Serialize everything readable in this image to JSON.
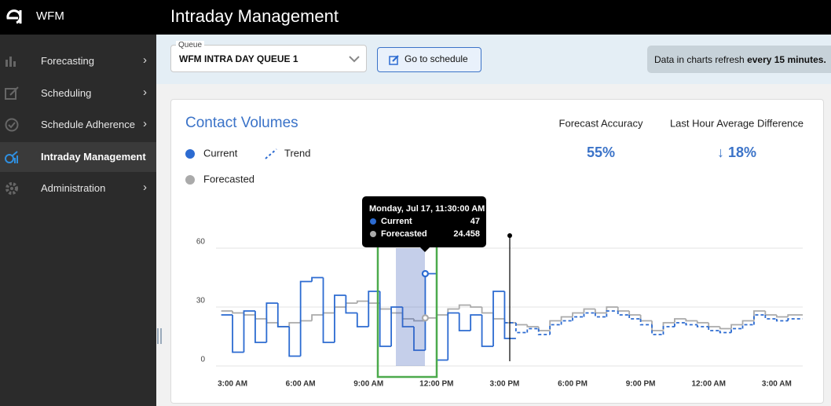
{
  "app_name": "WFM",
  "header_title": "Intraday Management",
  "sidebar": [
    "Forecasting",
    "Scheduling",
    "Schedule Adherence",
    "Intraday Management",
    "Administration"
  ],
  "queue": {
    "label": "Queue",
    "value": "WFM INTRA DAY QUEUE 1"
  },
  "button": "Go to schedule",
  "refresh_note": {
    "text": "Data in charts refresh ",
    "bold": "every 15 minutes."
  },
  "stats": [
    {
      "label": "Forecast Accuracy",
      "value": "55%"
    },
    {
      "label": "Last Hour Average Difference",
      "value": "↓ 18%"
    }
  ],
  "tooltip_title": "Monday, Jul 17, 11:30:00 AM",
  "chart_data": {
    "type": "step-line",
    "title": "Contact Volumes",
    "x": [
      2.5,
      3,
      3.5,
      4,
      4.5,
      5,
      5.5,
      6,
      6.5,
      7,
      7.5,
      8,
      8.5,
      9,
      9.5,
      10,
      10.5,
      11,
      11.5,
      12,
      12.5,
      13,
      13.5,
      14,
      14.5,
      15,
      15.5,
      16,
      16.5,
      17,
      17.5,
      18,
      18.5,
      19,
      19.5,
      20,
      20.5,
      21,
      21.5,
      22,
      22.5,
      23,
      23.5,
      24,
      24.5,
      25,
      25.5,
      26,
      26.5,
      27,
      27.5
    ],
    "xlim": [
      2.27,
      28.15
    ],
    "xticks": [
      {
        "value": 3,
        "label": "3:00 AM"
      },
      {
        "value": 6,
        "label": "6:00 AM"
      },
      {
        "value": 9,
        "label": "9:00 AM"
      },
      {
        "value": 12,
        "label": "12:00 PM"
      },
      {
        "value": 15,
        "label": "3:00 PM"
      },
      {
        "value": 18,
        "label": "6:00 PM"
      },
      {
        "value": 21,
        "label": "9:00 PM"
      },
      {
        "value": 24,
        "label": "12:00 AM"
      },
      {
        "value": 27,
        "label": "3:00 AM"
      }
    ],
    "ylim": [
      0,
      60
    ],
    "yticks": [
      0,
      30,
      60
    ],
    "grid": true,
    "series": [
      {
        "name": "Current",
        "color": "#2c6bd1",
        "dashed": false,
        "values": [
          26,
          7,
          28,
          12,
          32,
          20,
          5,
          43,
          45,
          12,
          36,
          27,
          20,
          38,
          10,
          30,
          20,
          8,
          47,
          3,
          27,
          18,
          26,
          10,
          38,
          14,
          null,
          null,
          null,
          null,
          null,
          null,
          null,
          null,
          null,
          null,
          null,
          null,
          null,
          null,
          null,
          null,
          null,
          null,
          null,
          null,
          null,
          null,
          null,
          null,
          null
        ]
      },
      {
        "name": "Trend",
        "color": "#2c6bd1",
        "dashed": true,
        "values": [
          null,
          null,
          null,
          null,
          null,
          null,
          null,
          null,
          null,
          null,
          null,
          null,
          null,
          null,
          null,
          null,
          null,
          null,
          null,
          null,
          null,
          null,
          null,
          null,
          null,
          22,
          17,
          19,
          16,
          21,
          23,
          25,
          27,
          25,
          28,
          26,
          24,
          21,
          16,
          20,
          22,
          21,
          20,
          18,
          17,
          19,
          21,
          26,
          24,
          23,
          24
        ]
      },
      {
        "name": "Forecasted",
        "color": "#aaaaaa",
        "dashed": false,
        "values": [
          28,
          27,
          26,
          24,
          22,
          20,
          22,
          23,
          26,
          27,
          30,
          32,
          33,
          32,
          29,
          27,
          24,
          23,
          24.458,
          26,
          29,
          31,
          30,
          27,
          24,
          22,
          21,
          20,
          18,
          23,
          25,
          27,
          29,
          27,
          30,
          28,
          26,
          23,
          18,
          22,
          24,
          23,
          22,
          20,
          19,
          21,
          23,
          28,
          26,
          25,
          26
        ]
      }
    ]
  }
}
